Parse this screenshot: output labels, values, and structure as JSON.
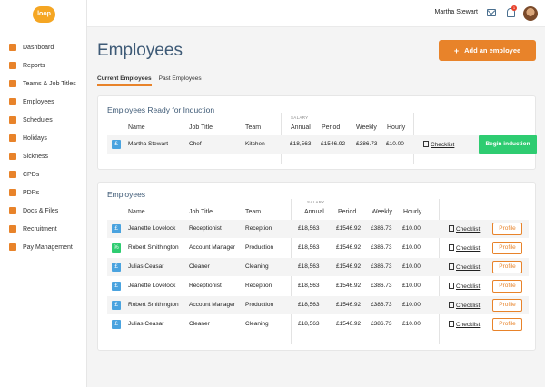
{
  "logo": {
    "text": "loop"
  },
  "sidebar": {
    "items": [
      {
        "label": "Dashboard",
        "icon": "dashboard-icon"
      },
      {
        "label": "Reports",
        "icon": "reports-icon"
      },
      {
        "label": "Teams & Job Titles",
        "icon": "teams-icon"
      },
      {
        "label": "Employees",
        "icon": "employees-icon"
      },
      {
        "label": "Schedules",
        "icon": "schedules-icon"
      },
      {
        "label": "Holidays",
        "icon": "holidays-icon"
      },
      {
        "label": "Sickness",
        "icon": "sickness-icon"
      },
      {
        "label": "CPDs",
        "icon": "cpds-icon"
      },
      {
        "label": "PDRs",
        "icon": "pdrs-icon"
      },
      {
        "label": "Docs & Files",
        "icon": "docs-icon"
      },
      {
        "label": "Recruitment",
        "icon": "recruitment-icon"
      },
      {
        "label": "Pay Management",
        "icon": "pay-icon"
      }
    ]
  },
  "header": {
    "user_name": "Martha Stewart",
    "notification_count": "1"
  },
  "page": {
    "title": "Employees",
    "add_button_label": "Add an employee",
    "tabs": [
      "Current Employees",
      "Past Employees"
    ]
  },
  "columns": {
    "name": "Name",
    "job_title": "Job Title",
    "team": "Team",
    "salary_group": "SALARY",
    "annual": "Annual",
    "period": "Period",
    "weekly": "Weekly",
    "hourly": "Hourly"
  },
  "induction": {
    "title": "Employees Ready for Induction",
    "rows": [
      {
        "badge": "£",
        "name": "Martha Stewart",
        "job": "Chef",
        "team": "Kitchen",
        "annual": "£18,563",
        "period": "£1546.92",
        "weekly": "£386.73",
        "hourly": "£10.00",
        "checklist": "Checklist",
        "action": "Begin induction"
      }
    ]
  },
  "employees": {
    "title": "Employees",
    "checklist_label": "Checklist",
    "profile_label": "Profile",
    "rows": [
      {
        "badge": "£",
        "badge_color": "blue",
        "name": "Jeanette Lovelock",
        "job": "Receptionist",
        "team": "Reception",
        "annual": "£18,563",
        "period": "£1546.92",
        "weekly": "£386.73",
        "hourly": "£10.00"
      },
      {
        "badge": "%",
        "badge_color": "green",
        "name": "Robert Smithington",
        "job": "Account Manager",
        "team": "Production",
        "annual": "£18,563",
        "period": "£1546.92",
        "weekly": "£386.73",
        "hourly": "£10.00"
      },
      {
        "badge": "£",
        "badge_color": "blue",
        "name": "Julias Ceasar",
        "job": "Cleaner",
        "team": "Cleaning",
        "annual": "£18,563",
        "period": "£1546.92",
        "weekly": "£386.73",
        "hourly": "£10.00"
      },
      {
        "badge": "£",
        "badge_color": "blue",
        "name": "Jeanette Lovelock",
        "job": "Receptionist",
        "team": "Reception",
        "annual": "£18,563",
        "period": "£1546.92",
        "weekly": "£386.73",
        "hourly": "£10.00"
      },
      {
        "badge": "£",
        "badge_color": "blue",
        "name": "Robert Smithington",
        "job": "Account Manager",
        "team": "Production",
        "annual": "£18,563",
        "period": "£1546.92",
        "weekly": "£386.73",
        "hourly": "£10.00"
      },
      {
        "badge": "£",
        "badge_color": "blue",
        "name": "Julias Ceasar",
        "job": "Cleaner",
        "team": "Cleaning",
        "annual": "£18,563",
        "period": "£1546.92",
        "weekly": "£386.73",
        "hourly": "£10.00"
      }
    ]
  },
  "colors": {
    "accent": "#e8832a",
    "title": "#3e5a76",
    "success": "#2ecc71",
    "info": "#4aa3df"
  }
}
